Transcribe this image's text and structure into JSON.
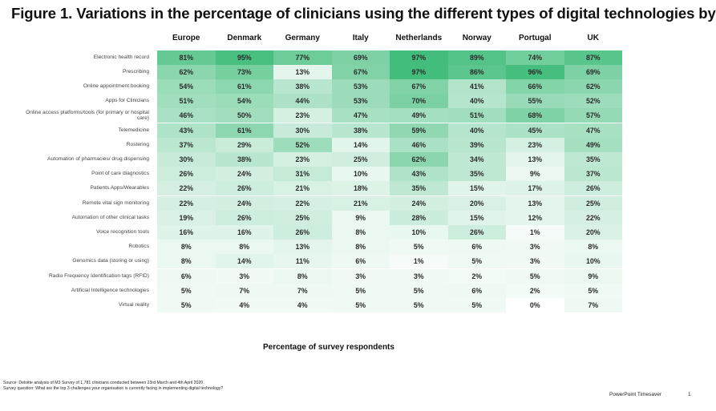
{
  "title": "Figure 1. Variations in the percentage of clinicians using the different types of digital technologies by",
  "chart_data": {
    "type": "heatmap",
    "title": "Figure 1. Variations in the percentage of clinicians using the different types of digital technologies by",
    "xlabel": "Percentage of survey respondents",
    "columns": [
      "Europe",
      "Denmark",
      "Germany",
      "Italy",
      "Netherlands",
      "Norway",
      "Portugal",
      "UK"
    ],
    "rows": [
      {
        "label": "Electronic health record",
        "values": [
          81,
          95,
          77,
          69,
          97,
          89,
          74,
          87
        ]
      },
      {
        "label": "Prescribing",
        "values": [
          62,
          73,
          13,
          67,
          97,
          86,
          96,
          69
        ]
      },
      {
        "label": "Online appointment booking",
        "values": [
          54,
          61,
          38,
          53,
          67,
          41,
          66,
          62
        ]
      },
      {
        "label": "Apps for Clinicians",
        "values": [
          51,
          54,
          44,
          53,
          70,
          40,
          55,
          52
        ]
      },
      {
        "label": "Online access platforms/tools (for primary or hospital care)",
        "values": [
          46,
          50,
          23,
          47,
          49,
          51,
          68,
          57
        ]
      },
      {
        "label": "Telemedicine",
        "values": [
          43,
          61,
          30,
          38,
          59,
          40,
          45,
          47
        ]
      },
      {
        "label": "Rostering",
        "values": [
          37,
          29,
          52,
          14,
          46,
          39,
          23,
          49
        ]
      },
      {
        "label": "Automation of pharmacies/ drug dispensing",
        "values": [
          30,
          38,
          23,
          25,
          62,
          34,
          13,
          35
        ]
      },
      {
        "label": "Point of care diagnostics",
        "values": [
          26,
          24,
          31,
          10,
          43,
          35,
          9,
          37
        ]
      },
      {
        "label": "Patients Apps/Wearables",
        "values": [
          22,
          26,
          21,
          18,
          35,
          15,
          17,
          26
        ]
      },
      {
        "label": "Remote vital sign monitoring",
        "values": [
          22,
          24,
          22,
          21,
          24,
          20,
          13,
          25
        ]
      },
      {
        "label": "Automation of other clinical tasks",
        "values": [
          19,
          26,
          25,
          9,
          28,
          15,
          12,
          22
        ]
      },
      {
        "label": "Voice recognition tools",
        "values": [
          16,
          16,
          26,
          8,
          10,
          26,
          1,
          20
        ]
      },
      {
        "label": "Robotics",
        "values": [
          8,
          8,
          13,
          8,
          5,
          6,
          3,
          8
        ]
      },
      {
        "label": "Genomics data (storing or using)",
        "values": [
          8,
          14,
          11,
          6,
          1,
          5,
          3,
          10
        ]
      },
      {
        "label": "Radio Frequency Identification tags (RFID)",
        "values": [
          6,
          3,
          8,
          3,
          3,
          2,
          5,
          9
        ]
      },
      {
        "label": "Artificial Intelligence technologies",
        "values": [
          5,
          7,
          7,
          5,
          5,
          6,
          2,
          5
        ]
      },
      {
        "label": "Virtual reality",
        "values": [
          5,
          4,
          4,
          5,
          5,
          5,
          0,
          7
        ]
      }
    ],
    "value_suffix": "%",
    "colors": {
      "low": "#ffffff",
      "high": "#3dbb78"
    }
  },
  "source_line1": "Source: Deloitte analysis of M3 Survey of 1,781 clinicians conducted between 23rd March and 4th April 2020",
  "source_line2": "Survey question: What are the top 3 challenges your organisation is currently facing in implementing digital technology?",
  "footer_text": "PowerPoint Timesaver",
  "page_number": "1"
}
